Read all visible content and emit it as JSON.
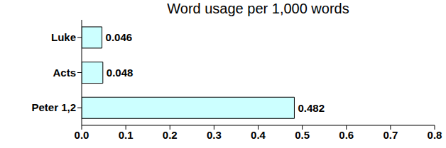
{
  "chart_data": {
    "type": "bar",
    "title": "Word usage per 1,000 words",
    "orientation": "horizontal",
    "categories": [
      "Luke",
      "Acts",
      "Peter 1,2"
    ],
    "values": [
      0.046,
      0.048,
      0.482
    ],
    "color": "#ccffff",
    "xlim": [
      0,
      0.8
    ],
    "xticks": [
      {
        "value": 0,
        "label": "0.0"
      },
      0.1,
      0.2,
      0.3,
      0.4,
      0.5,
      0.6,
      0.7,
      0.8
    ],
    "grid": false,
    "data_labels": true
  }
}
